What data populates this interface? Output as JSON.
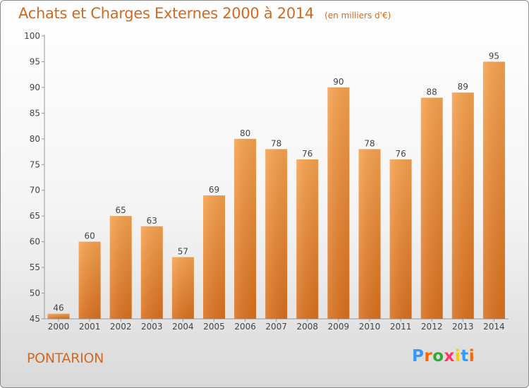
{
  "title": "Achats et Charges Externes 2000 à 2014",
  "unit": "(en milliers d'€)",
  "place": "PONTARION",
  "logo": {
    "text": "Proxiti",
    "colors": [
      "#3399ff",
      "#ff6600",
      "#33aa33",
      "#ff3366",
      "#ffcc00",
      "#3399ff",
      "#ff6600"
    ]
  },
  "colors": {
    "bar_top": "#f6a24e",
    "bar_bottom": "#d9701e",
    "accent": "#d2691e"
  },
  "chart_data": {
    "type": "bar",
    "categories": [
      "2000",
      "2001",
      "2002",
      "2003",
      "2004",
      "2005",
      "2006",
      "2007",
      "2008",
      "2009",
      "2010",
      "2011",
      "2012",
      "2013",
      "2014"
    ],
    "values": [
      46,
      60,
      65,
      63,
      57,
      69,
      80,
      78,
      76,
      90,
      78,
      76,
      88,
      89,
      95
    ],
    "ylim": [
      45,
      100
    ],
    "yticks": [
      45,
      50,
      55,
      60,
      65,
      70,
      75,
      80,
      85,
      90,
      95,
      100
    ],
    "grid": false,
    "title": "Achats et Charges Externes 2000 à 2014",
    "xlabel": "",
    "ylabel": ""
  }
}
